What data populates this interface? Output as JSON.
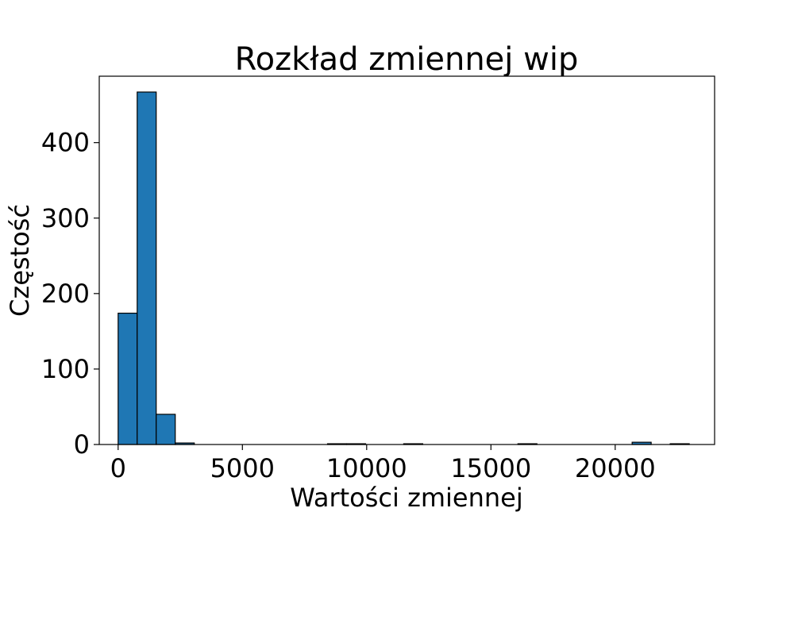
{
  "chart_data": {
    "type": "bar",
    "title": "Rozkład zmiennej wip",
    "xlabel": "Wartości zmiennej",
    "ylabel": "Częstość",
    "xlim": [
      -760,
      24000
    ],
    "ylim": [
      0,
      488
    ],
    "xticks": [
      0,
      5000,
      10000,
      15000,
      20000
    ],
    "xtick_labels": [
      "0",
      "5000",
      "10000",
      "15000",
      "20000"
    ],
    "yticks": [
      0,
      100,
      200,
      300,
      400
    ],
    "ytick_labels": [
      "0",
      "100",
      "200",
      "300",
      "400"
    ],
    "bin_start": 0,
    "bin_width": 766,
    "counts": [
      174,
      467,
      40,
      2,
      0,
      0,
      0,
      0,
      0,
      0,
      0,
      1,
      1,
      0,
      0,
      1,
      0,
      0,
      0,
      0,
      0,
      1,
      0,
      0,
      0,
      0,
      0,
      3,
      0,
      1
    ],
    "bar_color": "#1f77b4",
    "edge_color": "#000000",
    "grid": false
  }
}
